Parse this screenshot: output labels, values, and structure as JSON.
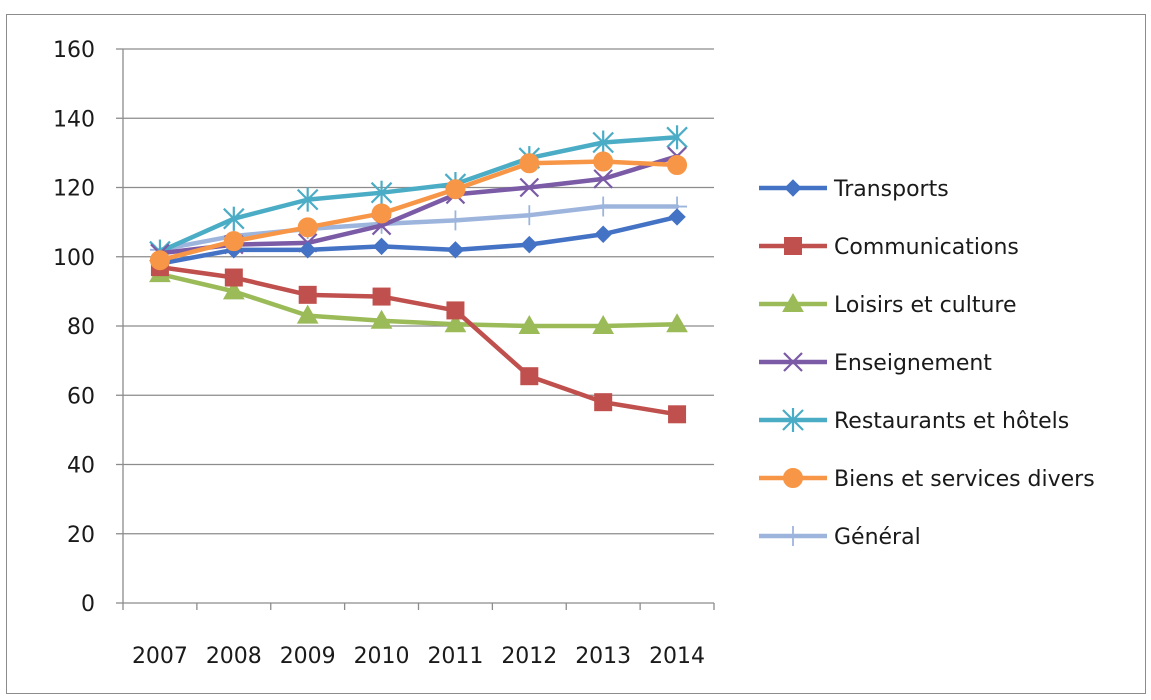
{
  "chart_data": {
    "type": "line",
    "categories": [
      "2007",
      "2008",
      "2009",
      "2010",
      "2011",
      "2012",
      "2013",
      "2014"
    ],
    "ylim": [
      0,
      160
    ],
    "yticks": [
      0,
      20,
      40,
      60,
      80,
      100,
      120,
      140,
      160
    ],
    "grid": true,
    "legend_position": "right",
    "title": "",
    "xlabel": "",
    "ylabel": "",
    "series": [
      {
        "name": "Transports",
        "values": [
          98,
          102,
          102,
          103,
          102,
          103.5,
          106.5,
          111.5
        ],
        "color": "#4472c4",
        "marker": "diamond"
      },
      {
        "name": "Communications",
        "values": [
          97,
          94,
          89,
          88.5,
          84.5,
          65.5,
          58,
          54.5
        ],
        "color": "#c0504d",
        "marker": "square"
      },
      {
        "name": "Loisirs et culture",
        "values": [
          95,
          90,
          83,
          81.5,
          80.5,
          80,
          80,
          80.5
        ],
        "color": "#9bbb59",
        "marker": "triangle"
      },
      {
        "name": "Enseignement",
        "values": [
          101,
          103.5,
          104,
          109,
          118,
          120,
          122.5,
          129
        ],
        "color": "#7b5aa6",
        "marker": "x"
      },
      {
        "name": "Restaurants et hôtels",
        "values": [
          101.5,
          111,
          116.5,
          118.5,
          121,
          128.5,
          133,
          134.5
        ],
        "color": "#4bacc6",
        "marker": "star"
      },
      {
        "name": "Biens et services divers",
        "values": [
          99,
          104.5,
          108.5,
          112.5,
          119.5,
          127,
          127.5,
          126.5
        ],
        "color": "#f79646",
        "marker": "circle"
      },
      {
        "name": "Général",
        "values": [
          102,
          106,
          108,
          109.5,
          110.5,
          112,
          114.5,
          114.5
        ],
        "color": "#9db5dd",
        "marker": "plus"
      }
    ]
  }
}
